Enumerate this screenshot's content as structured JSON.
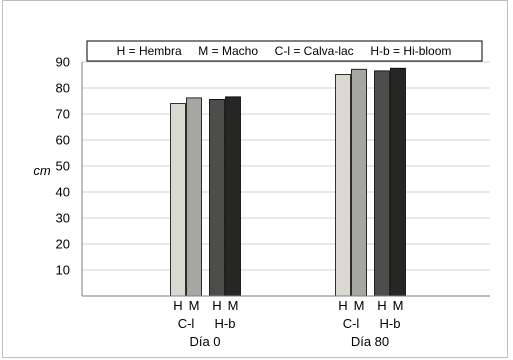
{
  "chart_data": {
    "type": "bar",
    "ylabel": "cm",
    "ylim": [
      0,
      90
    ],
    "yticks": [
      10,
      20,
      30,
      40,
      50,
      60,
      70,
      80,
      90
    ],
    "grid": true,
    "legend_text": "H = Hembra     M = Macho     C-l = Calva-lac     H-b = Hi-bloom",
    "legend_placement": "top",
    "series_colors": {
      "C-l H": "#d9d9d2",
      "C-l M": "#a6a6a3",
      "H-b H": "#4d4d4b",
      "H-b M": "#262624"
    },
    "groups": [
      {
        "label": "Día 0",
        "subgroups": [
          {
            "label": "C-l",
            "bars": [
              {
                "sex": "H",
                "value": 74
              },
              {
                "sex": "M",
                "value": 76.2
              }
            ]
          },
          {
            "label": "H-b",
            "bars": [
              {
                "sex": "H",
                "value": 75.6
              },
              {
                "sex": "M",
                "value": 76.6
              }
            ]
          }
        ]
      },
      {
        "label": "Día 80",
        "subgroups": [
          {
            "label": "C-l",
            "bars": [
              {
                "sex": "H",
                "value": 85.2
              },
              {
                "sex": "M",
                "value": 87.2
              }
            ]
          },
          {
            "label": "H-b",
            "bars": [
              {
                "sex": "H",
                "value": 86.6
              },
              {
                "sex": "M",
                "value": 87.6
              }
            ]
          }
        ]
      }
    ]
  }
}
